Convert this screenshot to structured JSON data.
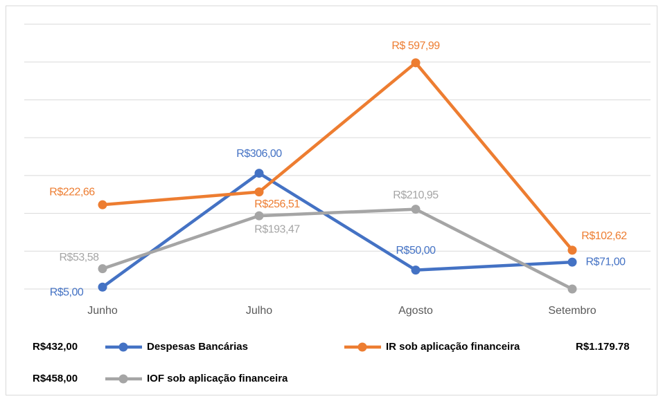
{
  "chart_data": {
    "type": "line",
    "categories": [
      "Junho",
      "Julho",
      "Agosto",
      "Setembro"
    ],
    "ylim": [
      0,
      700
    ],
    "yticks": [
      0,
      100,
      200,
      300,
      400,
      500,
      600,
      700
    ],
    "grid": true,
    "series": [
      {
        "name": "Despesas Bancárias",
        "color": "#4472c4",
        "values": [
          5,
          306,
          50,
          71
        ],
        "value_labels": [
          "R$5,00",
          "R$306,00",
          "R$50,00",
          "R$71,00"
        ],
        "legend_total": "R$432,00"
      },
      {
        "name": "IR sob aplicação financeira",
        "color": "#ed7d31",
        "values": [
          222.66,
          256.51,
          597.99,
          102.62
        ],
        "value_labels": [
          "R$222,66",
          "R$256,51",
          "R$ 597,99",
          "R$102,62"
        ],
        "legend_total": "R$1.179.78"
      },
      {
        "name": "IOF sob aplicação financeira",
        "color": "#a5a5a5",
        "values": [
          53.58,
          193.47,
          210.95,
          0
        ],
        "value_labels": [
          "R$53,58",
          "R$193,47",
          "R$210,95",
          null
        ],
        "legend_total": "R$458,00"
      }
    ]
  }
}
